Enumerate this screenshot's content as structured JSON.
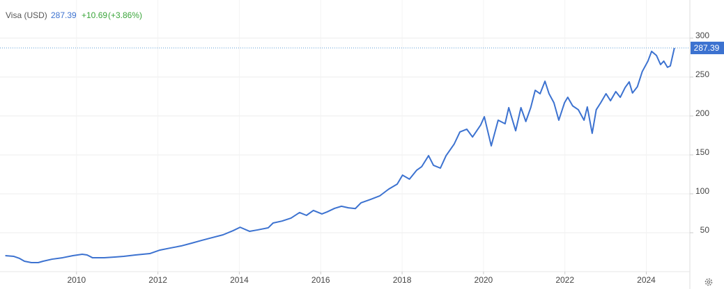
{
  "chart_data": {
    "type": "line",
    "title": "Visa (USD)",
    "price": 287.39,
    "change": "+10.69",
    "change_pct": "(+3.86%)",
    "color": "#3c72d0",
    "xlim": [
      2008.12,
      2025.07
    ],
    "xticks": [
      2010,
      2012,
      2014,
      2016,
      2018,
      2020,
      2022,
      2024
    ],
    "ylim": [
      0,
      349
    ],
    "yticks": [
      50,
      100,
      150,
      200,
      250,
      300
    ],
    "grid": true,
    "x": [
      2008.25,
      2008.46,
      2008.6,
      2008.72,
      2008.89,
      2009.06,
      2009.18,
      2009.4,
      2009.66,
      2009.91,
      2010.14,
      2010.26,
      2010.39,
      2010.68,
      2010.94,
      2011.16,
      2011.45,
      2011.8,
      2012.05,
      2012.31,
      2012.57,
      2012.83,
      2013.08,
      2013.34,
      2013.6,
      2013.85,
      2014.02,
      2014.25,
      2014.45,
      2014.71,
      2014.83,
      2015.05,
      2015.27,
      2015.48,
      2015.65,
      2015.82,
      2016.03,
      2016.16,
      2016.34,
      2016.51,
      2016.68,
      2016.85,
      2016.99,
      2017.23,
      2017.45,
      2017.67,
      2017.88,
      2018.01,
      2018.18,
      2018.36,
      2018.48,
      2018.65,
      2018.77,
      2018.94,
      2019.08,
      2019.28,
      2019.42,
      2019.59,
      2019.73,
      2019.93,
      2020.02,
      2020.19,
      2020.36,
      2020.53,
      2020.62,
      2020.79,
      2020.92,
      2021.04,
      2021.16,
      2021.27,
      2021.39,
      2021.51,
      2021.61,
      2021.73,
      2021.85,
      2021.99,
      2022.07,
      2022.19,
      2022.33,
      2022.47,
      2022.55,
      2022.67,
      2022.77,
      2022.88,
      2023.01,
      2023.12,
      2023.25,
      2023.36,
      2023.48,
      2023.58,
      2023.66,
      2023.78,
      2023.9,
      2024.04,
      2024.13,
      2024.25,
      2024.35,
      2024.43,
      2024.52,
      2024.59,
      2024.69
    ],
    "values": [
      20.5,
      19.6,
      17,
      13.4,
      11.6,
      11.6,
      13.4,
      16,
      17.9,
      20.5,
      22.3,
      21.4,
      17.9,
      17.9,
      18.8,
      19.6,
      21.4,
      23.2,
      27.7,
      30.4,
      33,
      36.6,
      40.2,
      43.8,
      47.3,
      52.7,
      57,
      51.8,
      53.6,
      56.3,
      62.5,
      65,
      68.8,
      75.9,
      72.3,
      78.6,
      74.1,
      76.8,
      81.3,
      84,
      82,
      81,
      88.4,
      92.9,
      97.3,
      106,
      112.5,
      124,
      118.8,
      130.4,
      134.8,
      149,
      136.6,
      133,
      149,
      164,
      179.5,
      183,
      173,
      188.4,
      199,
      161.6,
      194.6,
      190,
      210.7,
      181,
      210.7,
      192.9,
      210.7,
      233,
      228.6,
      244.6,
      228.6,
      217,
      194.6,
      217,
      224,
      213,
      208,
      194.6,
      211.6,
      177.7,
      208,
      217,
      228.6,
      219.6,
      231.3,
      224,
      236.6,
      243.8,
      229.5,
      237.5,
      257,
      270.5,
      283,
      277.7,
      266,
      270.5,
      262.5,
      264.3,
      287.39
    ]
  }
}
